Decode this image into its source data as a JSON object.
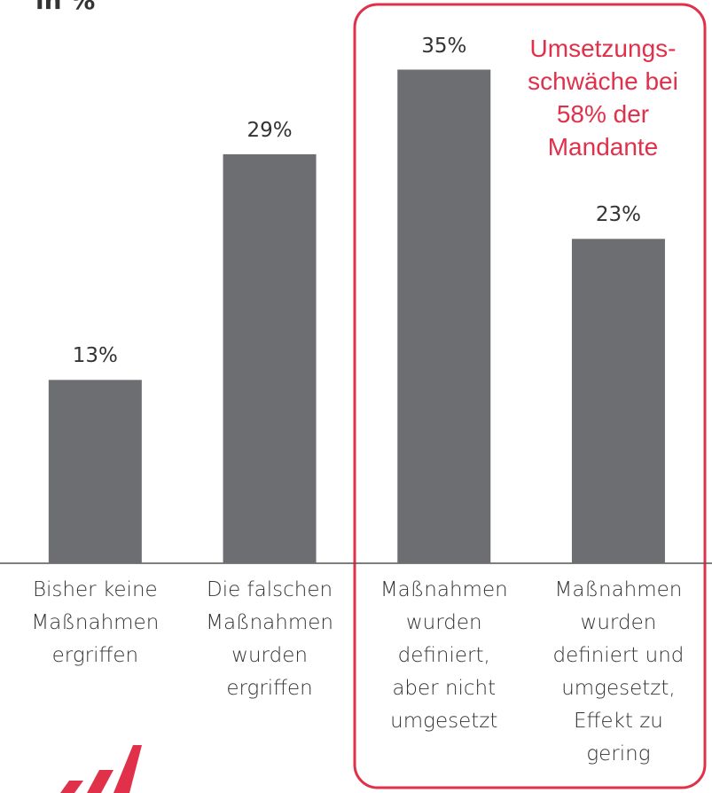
{
  "chart_data": {
    "type": "bar",
    "title": "in %",
    "categories": [
      "Bisher keine\nMaßnahmen\nergriffen",
      "Die falschen\nMaßnahmen\nwurden\nergriffen",
      "Maßnahmen\nwurden\ndefiniert,\naber nicht\numgesetzt",
      "Maßnahmen\nwurden\ndefiniert und\numgesetzt,\nEffekt zu\ngering"
    ],
    "values": [
      13,
      29,
      35,
      23
    ],
    "value_labels": [
      "13%",
      "29%",
      "35%",
      "23%"
    ],
    "color": "#6d6e71",
    "ylim": [
      0,
      40
    ],
    "annotation": "Umsetzungs-\nschwäche bei\n58% der\nMandante",
    "highlight_color": "#e0304a"
  }
}
